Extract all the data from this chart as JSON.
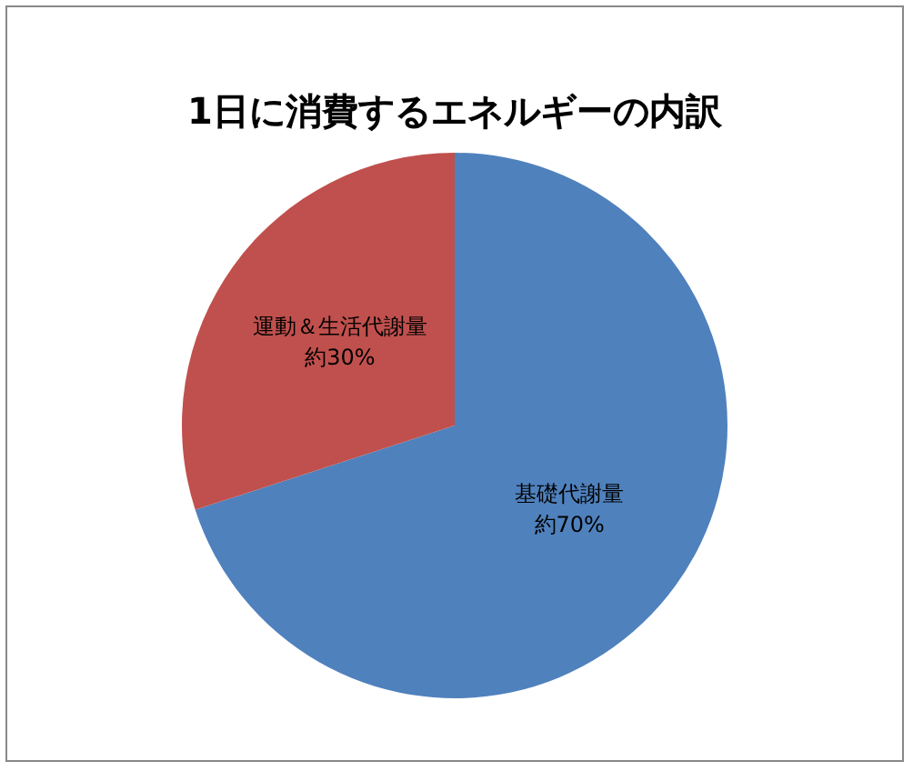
{
  "chart_data": {
    "type": "pie",
    "title": "1日に消費するエネルギーの内訳",
    "categories": [
      "基礎代謝量",
      "運動＆生活代謝量"
    ],
    "values": [
      70,
      30
    ],
    "colors": [
      "#4f81bd",
      "#c0504d"
    ],
    "value_labels": [
      "約70%",
      "約30%"
    ],
    "legend": false
  }
}
